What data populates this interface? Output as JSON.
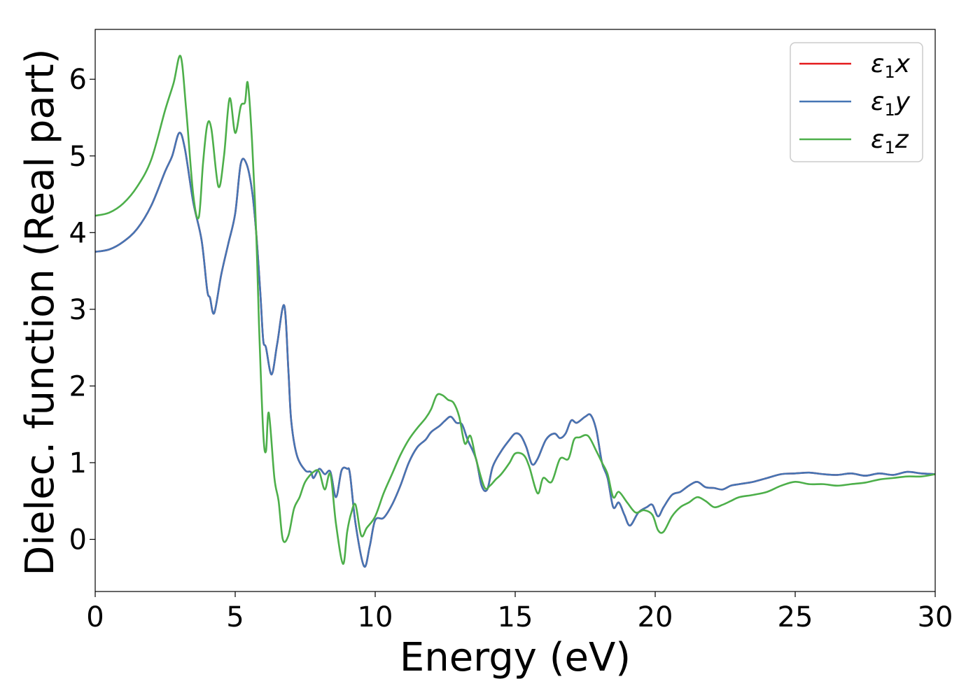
{
  "chart_data": {
    "type": "line",
    "title": "",
    "xlabel": "Energy (eV)",
    "ylabel": "Dielec. function (Real part)",
    "xlim": [
      0,
      30
    ],
    "ylim": [
      -0.68,
      6.65
    ],
    "xticks": [
      0,
      5,
      10,
      15,
      20,
      25,
      30
    ],
    "yticks": [
      0,
      1,
      2,
      3,
      4,
      5,
      6
    ],
    "grid": false,
    "legend_position": "top-right",
    "series": [
      {
        "name": "ε1x",
        "legend_symbol": "ε",
        "legend_sub": "1",
        "legend_var": "x",
        "color": "#e41a1c",
        "x": [
          0,
          0.5,
          1.0,
          1.5,
          2.0,
          2.5,
          2.75,
          3.0,
          3.2,
          3.5,
          3.8,
          4.0,
          4.1,
          4.25,
          4.5,
          4.75,
          5.0,
          5.2,
          5.4,
          5.6,
          5.75,
          5.9,
          6.0,
          6.1,
          6.3,
          6.5,
          6.75,
          6.9,
          7.0,
          7.2,
          7.5,
          7.7,
          7.8,
          8.0,
          8.2,
          8.4,
          8.6,
          8.8,
          9.0,
          9.1,
          9.3,
          9.6,
          9.8,
          10.0,
          10.3,
          10.6,
          10.9,
          11.2,
          11.5,
          11.8,
          12.0,
          12.3,
          12.5,
          12.7,
          12.9,
          13.1,
          13.3,
          13.6,
          13.8,
          14.0,
          14.2,
          14.5,
          14.8,
          15.0,
          15.2,
          15.4,
          15.6,
          15.8,
          16.1,
          16.4,
          16.6,
          16.8,
          17.0,
          17.2,
          17.5,
          17.7,
          17.9,
          18.1,
          18.3,
          18.5,
          18.7,
          18.9,
          19.1,
          19.4,
          19.7,
          19.9,
          20.1,
          20.3,
          20.6,
          20.9,
          21.2,
          21.5,
          21.8,
          22.1,
          22.4,
          22.7,
          23.0,
          23.5,
          24.0,
          24.5,
          25.0,
          25.5,
          26.0,
          26.5,
          27.0,
          27.5,
          28.0,
          28.5,
          29.0,
          29.5,
          30.0
        ],
        "values": [
          3.75,
          3.78,
          3.88,
          4.05,
          4.35,
          4.8,
          5.0,
          5.3,
          5.1,
          4.4,
          3.9,
          3.25,
          3.15,
          2.95,
          3.45,
          3.85,
          4.25,
          4.9,
          4.9,
          4.55,
          4.0,
          3.2,
          2.6,
          2.5,
          2.15,
          2.55,
          3.05,
          2.2,
          1.55,
          1.1,
          0.9,
          0.88,
          0.8,
          0.92,
          0.85,
          0.88,
          0.55,
          0.9,
          0.92,
          0.85,
          0.2,
          -0.35,
          -0.1,
          0.25,
          0.28,
          0.45,
          0.7,
          1.0,
          1.2,
          1.3,
          1.4,
          1.48,
          1.55,
          1.6,
          1.52,
          1.5,
          1.3,
          1.05,
          0.7,
          0.65,
          0.95,
          1.15,
          1.3,
          1.38,
          1.35,
          1.2,
          0.98,
          1.05,
          1.3,
          1.38,
          1.32,
          1.38,
          1.55,
          1.52,
          1.6,
          1.62,
          1.42,
          1.0,
          0.8,
          0.42,
          0.48,
          0.32,
          0.18,
          0.35,
          0.42,
          0.45,
          0.3,
          0.42,
          0.58,
          0.62,
          0.7,
          0.75,
          0.68,
          0.67,
          0.65,
          0.7,
          0.72,
          0.75,
          0.8,
          0.85,
          0.86,
          0.87,
          0.85,
          0.84,
          0.86,
          0.83,
          0.86,
          0.84,
          0.88,
          0.86,
          0.85
        ]
      },
      {
        "name": "ε1y",
        "legend_symbol": "ε",
        "legend_sub": "1",
        "legend_var": "y",
        "color": "#4575b4",
        "x": [
          0,
          0.5,
          1.0,
          1.5,
          2.0,
          2.5,
          2.75,
          3.0,
          3.2,
          3.5,
          3.8,
          4.0,
          4.1,
          4.25,
          4.5,
          4.75,
          5.0,
          5.2,
          5.4,
          5.6,
          5.75,
          5.9,
          6.0,
          6.1,
          6.3,
          6.5,
          6.75,
          6.9,
          7.0,
          7.2,
          7.5,
          7.7,
          7.8,
          8.0,
          8.2,
          8.4,
          8.6,
          8.8,
          9.0,
          9.1,
          9.3,
          9.6,
          9.8,
          10.0,
          10.3,
          10.6,
          10.9,
          11.2,
          11.5,
          11.8,
          12.0,
          12.3,
          12.5,
          12.7,
          12.9,
          13.1,
          13.3,
          13.6,
          13.8,
          14.0,
          14.2,
          14.5,
          14.8,
          15.0,
          15.2,
          15.4,
          15.6,
          15.8,
          16.1,
          16.4,
          16.6,
          16.8,
          17.0,
          17.2,
          17.5,
          17.7,
          17.9,
          18.1,
          18.3,
          18.5,
          18.7,
          18.9,
          19.1,
          19.4,
          19.7,
          19.9,
          20.1,
          20.3,
          20.6,
          20.9,
          21.2,
          21.5,
          21.8,
          22.1,
          22.4,
          22.7,
          23.0,
          23.5,
          24.0,
          24.5,
          25.0,
          25.5,
          26.0,
          26.5,
          27.0,
          27.5,
          28.0,
          28.5,
          29.0,
          29.5,
          30.0
        ],
        "values": [
          3.75,
          3.78,
          3.88,
          4.05,
          4.35,
          4.8,
          5.0,
          5.3,
          5.1,
          4.4,
          3.9,
          3.25,
          3.15,
          2.95,
          3.45,
          3.85,
          4.25,
          4.9,
          4.9,
          4.55,
          4.0,
          3.2,
          2.6,
          2.5,
          2.15,
          2.55,
          3.05,
          2.2,
          1.55,
          1.1,
          0.9,
          0.88,
          0.8,
          0.92,
          0.85,
          0.88,
          0.55,
          0.9,
          0.92,
          0.85,
          0.2,
          -0.35,
          -0.1,
          0.25,
          0.28,
          0.45,
          0.7,
          1.0,
          1.2,
          1.3,
          1.4,
          1.48,
          1.55,
          1.6,
          1.52,
          1.5,
          1.3,
          1.05,
          0.7,
          0.65,
          0.95,
          1.15,
          1.3,
          1.38,
          1.35,
          1.2,
          0.98,
          1.05,
          1.3,
          1.38,
          1.32,
          1.38,
          1.55,
          1.52,
          1.6,
          1.62,
          1.42,
          1.0,
          0.8,
          0.42,
          0.48,
          0.32,
          0.18,
          0.35,
          0.42,
          0.45,
          0.3,
          0.42,
          0.58,
          0.62,
          0.7,
          0.75,
          0.68,
          0.67,
          0.65,
          0.7,
          0.72,
          0.75,
          0.8,
          0.85,
          0.86,
          0.87,
          0.85,
          0.84,
          0.86,
          0.83,
          0.86,
          0.84,
          0.88,
          0.86,
          0.85
        ]
      },
      {
        "name": "ε1z",
        "legend_symbol": "ε",
        "legend_sub": "1",
        "legend_var": "z",
        "color": "#4daf4a",
        "x": [
          0,
          0.5,
          1.0,
          1.5,
          2.0,
          2.5,
          2.8,
          3.05,
          3.25,
          3.5,
          3.7,
          3.85,
          4.0,
          4.15,
          4.4,
          4.6,
          4.8,
          5.0,
          5.2,
          5.35,
          5.45,
          5.6,
          5.75,
          5.85,
          6.0,
          6.1,
          6.2,
          6.4,
          6.55,
          6.7,
          6.9,
          7.1,
          7.3,
          7.5,
          7.8,
          8.0,
          8.2,
          8.4,
          8.6,
          8.85,
          9.0,
          9.15,
          9.3,
          9.5,
          9.7,
          10.0,
          10.3,
          10.6,
          10.9,
          11.2,
          11.5,
          11.8,
          12.0,
          12.2,
          12.4,
          12.6,
          12.8,
          13.0,
          13.2,
          13.4,
          13.6,
          13.9,
          14.1,
          14.3,
          14.5,
          14.8,
          15.0,
          15.3,
          15.5,
          15.8,
          16.0,
          16.3,
          16.6,
          16.9,
          17.1,
          17.3,
          17.6,
          17.9,
          18.1,
          18.3,
          18.5,
          18.7,
          19.0,
          19.3,
          19.6,
          19.9,
          20.1,
          20.3,
          20.6,
          20.9,
          21.2,
          21.5,
          21.8,
          22.1,
          22.4,
          22.7,
          23.0,
          23.5,
          24.0,
          24.5,
          25.0,
          25.5,
          26.0,
          26.5,
          27.0,
          27.5,
          28.0,
          28.5,
          29.0,
          29.5,
          30.0
        ],
        "values": [
          4.22,
          4.26,
          4.38,
          4.6,
          4.95,
          5.6,
          5.95,
          6.3,
          5.6,
          4.5,
          4.2,
          4.9,
          5.4,
          5.35,
          4.6,
          5.0,
          5.75,
          5.3,
          5.65,
          5.7,
          5.95,
          5.2,
          4.0,
          2.8,
          1.4,
          1.15,
          1.65,
          0.8,
          0.5,
          0.0,
          0.05,
          0.4,
          0.55,
          0.75,
          0.88,
          0.88,
          0.65,
          0.85,
          0.2,
          -0.32,
          0.1,
          0.35,
          0.45,
          0.05,
          0.15,
          0.3,
          0.6,
          0.85,
          1.1,
          1.3,
          1.45,
          1.58,
          1.7,
          1.88,
          1.88,
          1.82,
          1.78,
          1.6,
          1.25,
          1.35,
          1.05,
          0.68,
          0.7,
          0.78,
          0.85,
          1.0,
          1.12,
          1.1,
          0.95,
          0.6,
          0.8,
          0.75,
          1.05,
          1.05,
          1.3,
          1.33,
          1.35,
          1.15,
          1.0,
          0.85,
          0.55,
          0.62,
          0.48,
          0.35,
          0.38,
          0.32,
          0.12,
          0.1,
          0.3,
          0.42,
          0.48,
          0.55,
          0.5,
          0.42,
          0.45,
          0.5,
          0.55,
          0.58,
          0.62,
          0.7,
          0.75,
          0.72,
          0.72,
          0.7,
          0.72,
          0.74,
          0.78,
          0.8,
          0.82,
          0.82,
          0.85
        ]
      }
    ]
  }
}
